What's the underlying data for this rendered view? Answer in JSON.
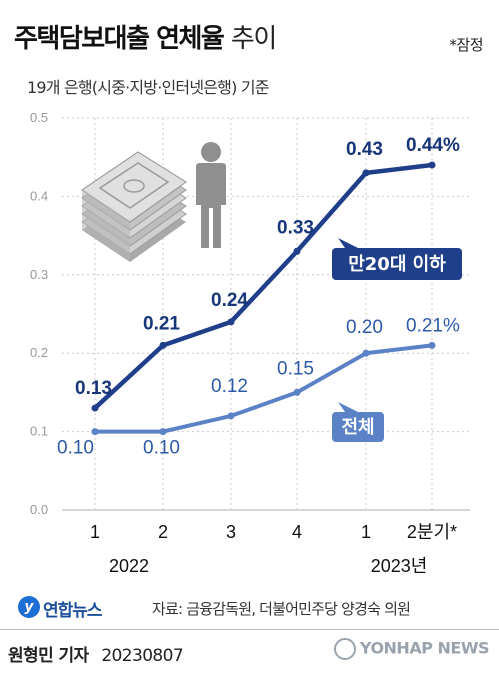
{
  "title_bold": "주택담보대출 연체율",
  "title_light": "추이",
  "prelim_note": "*잠정",
  "subtitle": "19개 은행(시중·지방·인터넷은행) 기준",
  "source_logo": "연합뉴스",
  "source": "자료: 금융감독원, 더불어민주당 양경숙 의원",
  "reporter": "원형민 기자",
  "date": "20230807",
  "watermark": "YONHAP NEWS",
  "colors": {
    "dark_series": "#1f3f8a",
    "light_series": "#5b82c7",
    "grid": "#c9c9c9",
    "icon": "#8f8f8f"
  },
  "icon_name": "money-stack-and-person-icon",
  "chart_data": {
    "type": "line",
    "categories": [
      "1",
      "2",
      "3",
      "4",
      "1",
      "2분기*"
    ],
    "year_labels": [
      "2022",
      "2023년"
    ],
    "yticks": [
      "0.0",
      "0.1",
      "0.2",
      "0.3",
      "0.4",
      "0.5"
    ],
    "ylim": [
      0,
      0.5
    ],
    "grid": "horizontal dotted",
    "series": [
      {
        "name": "만20대 이하",
        "values": [
          0.13,
          0.21,
          0.24,
          0.33,
          0.43,
          0.44
        ],
        "labels": [
          "0.13",
          "0.21",
          "0.24",
          "0.33",
          "0.43",
          "0.44%"
        ]
      },
      {
        "name": "전체",
        "values": [
          0.1,
          0.1,
          0.12,
          0.15,
          0.2,
          0.21
        ],
        "labels": [
          "0.10",
          "0.10",
          "0.12",
          "0.15",
          "0.20",
          "0.21%"
        ]
      }
    ]
  }
}
